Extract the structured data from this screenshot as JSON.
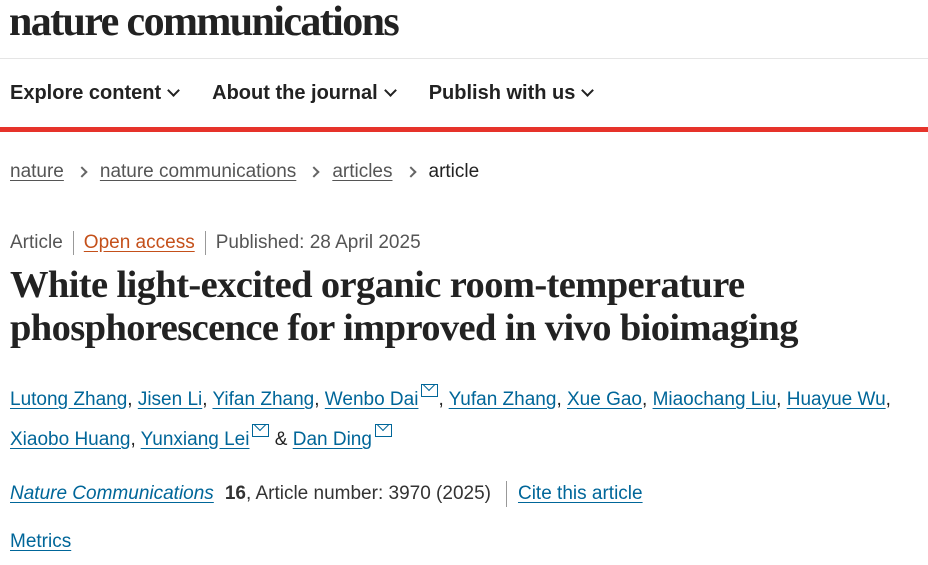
{
  "header": {
    "logo": "nature communications"
  },
  "nav": {
    "items": [
      {
        "label": "Explore content"
      },
      {
        "label": "About the journal"
      },
      {
        "label": "Publish with us"
      }
    ]
  },
  "breadcrumb": {
    "items": [
      "nature",
      "nature communications",
      "articles"
    ],
    "current": "article"
  },
  "meta": {
    "type": "Article",
    "access": "Open access",
    "published": "Published: 28 April 2025"
  },
  "article": {
    "title": "White light-excited organic room-temperature phosphorescence for improved in vivo bioimaging"
  },
  "authors": [
    {
      "name": "Lutong Zhang"
    },
    {
      "name": "Jisen Li"
    },
    {
      "name": "Yifan Zhang"
    },
    {
      "name": "Wenbo Dai",
      "corresponding": true
    },
    {
      "name": "Yufan Zhang"
    },
    {
      "name": "Xue Gao"
    },
    {
      "name": "Miaochang Liu"
    },
    {
      "name": "Huayue Wu"
    },
    {
      "name": "Xiaobo Huang"
    },
    {
      "name": "Yunxiang Lei",
      "corresponding": true
    },
    {
      "name": "Dan Ding",
      "corresponding": true
    }
  ],
  "citation": {
    "journal": "Nature Communications",
    "volume": "16",
    "rest": ", Article number: 3970 (2025)",
    "cite_label": "Cite this article"
  },
  "metrics_label": "Metrics",
  "colors": {
    "accent_red": "#e6332a",
    "link": "#006699",
    "open_access": "#c4501a"
  }
}
